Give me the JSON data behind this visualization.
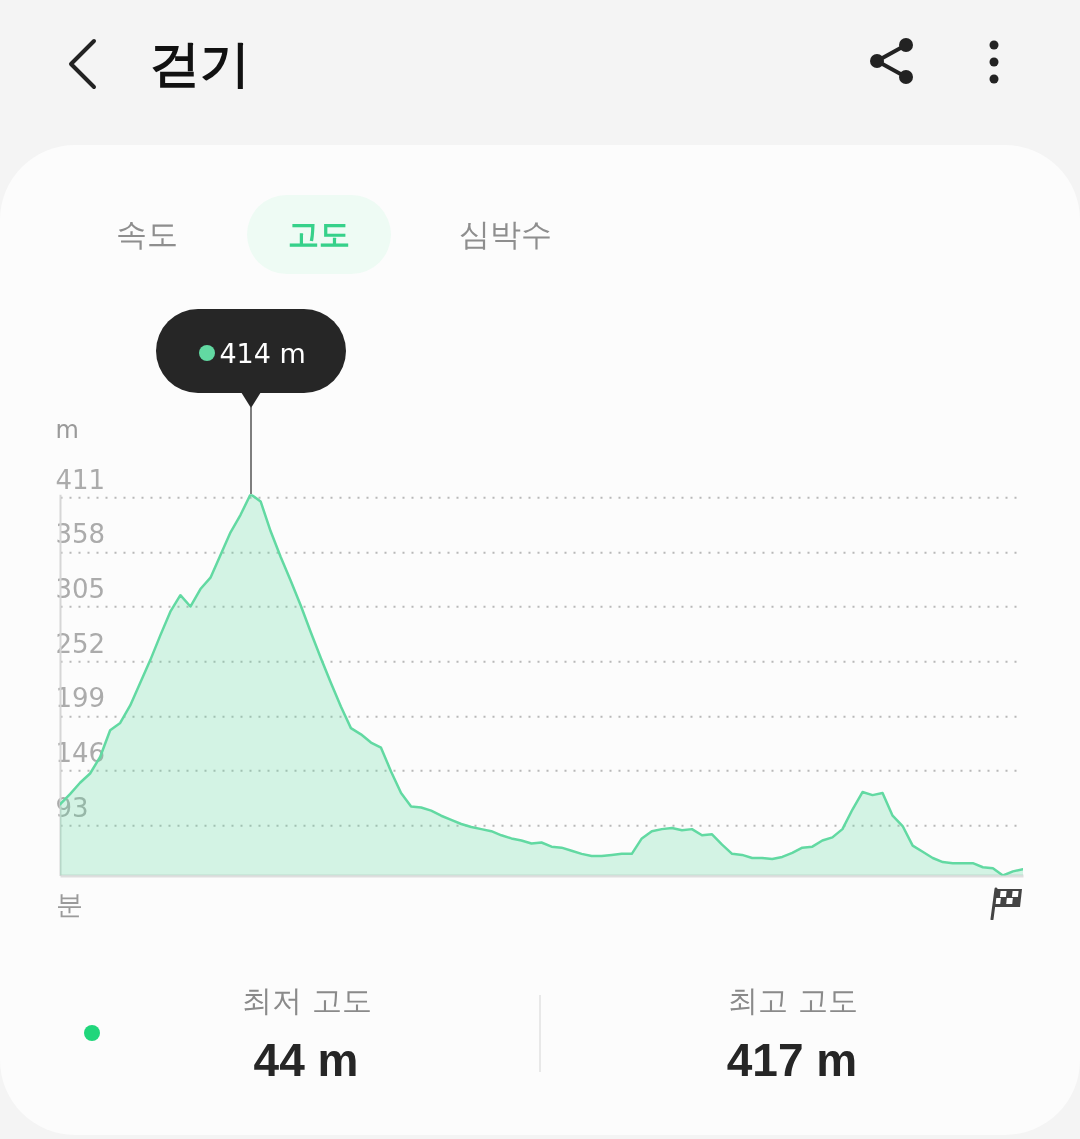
{
  "chart_data": {
    "type": "area",
    "title": "걷기",
    "xlabel": "분",
    "ylabel": "m",
    "categories": [
      null,
      null,
      null,
      null,
      null,
      null,
      null,
      null,
      null,
      null,
      null,
      null,
      null,
      null,
      null,
      null,
      null,
      null,
      null,
      null,
      null,
      null,
      null,
      null,
      null,
      null,
      null,
      null,
      null,
      null,
      null,
      null,
      null,
      null,
      null,
      null,
      null,
      null,
      null,
      null,
      null,
      null,
      null,
      null,
      null,
      null,
      null,
      null,
      null,
      null,
      null,
      null,
      null,
      null,
      null,
      null,
      null,
      null,
      null,
      null,
      null,
      null,
      null,
      null,
      null,
      null,
      null,
      null,
      null,
      null,
      null,
      null,
      null,
      null,
      null,
      null,
      null,
      null,
      null,
      null,
      null,
      null,
      null,
      null,
      null,
      null,
      null,
      null,
      null,
      null,
      null,
      null,
      null,
      null,
      null,
      null,
      null
    ],
    "series": [
      {
        "color": "#62d9a2",
        "values": [
          113,
          123,
          134,
          143,
          159,
          185,
          192,
          209,
          231,
          253,
          277,
          300,
          316,
          305,
          322,
          333,
          355,
          377,
          394,
          414,
          407,
          378,
          353,
          330,
          306,
          280,
          255,
          231,
          208,
          187,
          181,
          173,
          168,
          145,
          124,
          111,
          110,
          107,
          102,
          98,
          94,
          91,
          89,
          87,
          83,
          80,
          78,
          75,
          76,
          72,
          71,
          68,
          65,
          63,
          63,
          64,
          65,
          65,
          80,
          87,
          89,
          90,
          88,
          89,
          83,
          84,
          74,
          65,
          64,
          61,
          61,
          60,
          62,
          66,
          71,
          72,
          78,
          81,
          89,
          108,
          125,
          122,
          124,
          102,
          92,
          73,
          67,
          61,
          57,
          56,
          56,
          56,
          52,
          51,
          44,
          48,
          50
        ]
      }
    ],
    "ylim": [
      44,
      414
    ],
    "yticks": [
      93,
      146,
      199,
      252,
      305,
      358,
      411
    ],
    "grid": "y",
    "annotations": [
      "속도",
      "고도",
      "심박수",
      "414 m",
      "최저 고도",
      "44 m",
      "최고 고도",
      "417 m"
    ]
  }
}
